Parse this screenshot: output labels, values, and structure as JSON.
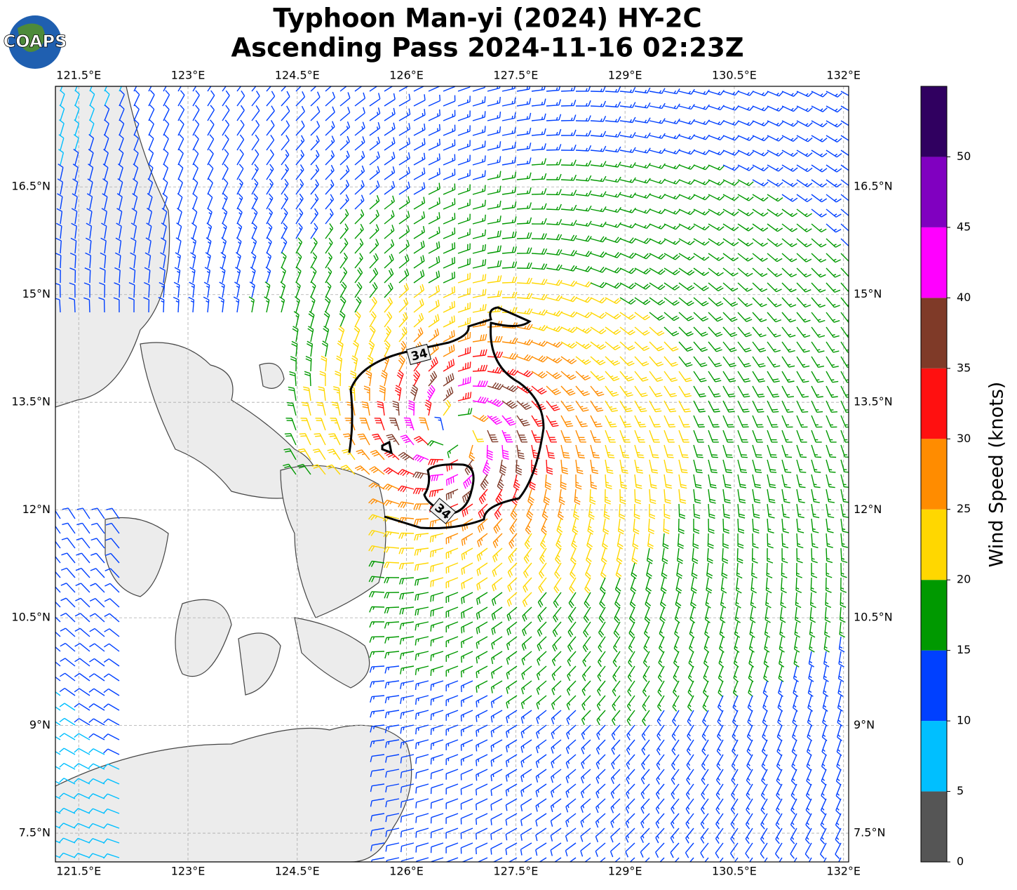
{
  "chart_data": {
    "type": "map",
    "title": "Typhoon Man-yi (2024) HY-2C",
    "subtitle": "Ascending Pass 2024-11-16 02:23Z",
    "logo": "COAPS",
    "xlim": [
      121.18,
      132.07
    ],
    "ylim": [
      7.1,
      17.9
    ],
    "xticks": [
      {
        "value": 121.5,
        "label": "121.5°E"
      },
      {
        "value": 123,
        "label": "123°E"
      },
      {
        "value": 124.5,
        "label": "124.5°E"
      },
      {
        "value": 126,
        "label": "126°E"
      },
      {
        "value": 127.5,
        "label": "127.5°E"
      },
      {
        "value": 129,
        "label": "129°E"
      },
      {
        "value": 130.5,
        "label": "130.5°E"
      },
      {
        "value": 132,
        "label": "132°E"
      }
    ],
    "yticks": [
      {
        "value": 7.5,
        "label": "7.5°N"
      },
      {
        "value": 9,
        "label": "9°N"
      },
      {
        "value": 10.5,
        "label": "10.5°N"
      },
      {
        "value": 12,
        "label": "12°N"
      },
      {
        "value": 13.5,
        "label": "13.5°N"
      },
      {
        "value": 15,
        "label": "15°N"
      },
      {
        "value": 16.5,
        "label": "16.5°N"
      }
    ],
    "grid": true,
    "contour_labels": [
      "34",
      "34"
    ],
    "colorbar": {
      "label": "Wind Speed (knots)",
      "lim": [
        0,
        55
      ],
      "ticks": [
        0,
        5,
        10,
        15,
        20,
        25,
        30,
        35,
        40,
        45,
        50
      ],
      "bounds": [
        0,
        5,
        10,
        15,
        20,
        25,
        30,
        35,
        40,
        45,
        50,
        55
      ],
      "colors": [
        "#555555",
        "#00bfff",
        "#0040ff",
        "#009900",
        "#ffd700",
        "#ff8c00",
        "#ff1010",
        "#7f3a28",
        "#ff00ff",
        "#8000c0",
        "#300060"
      ]
    }
  }
}
